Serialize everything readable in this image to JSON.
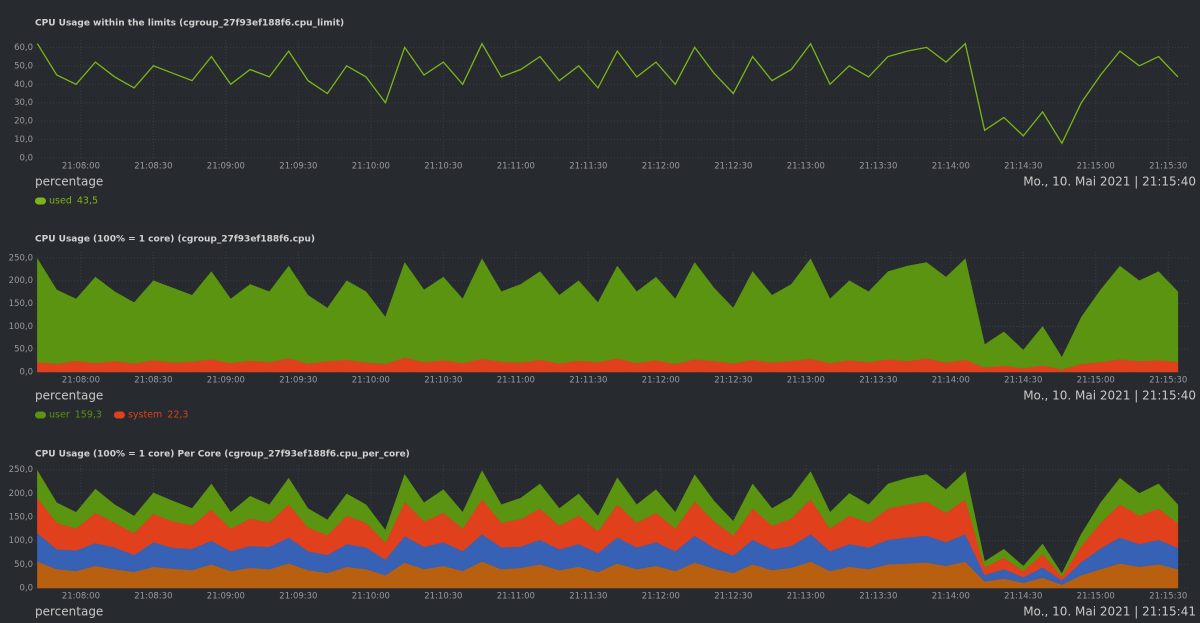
{
  "chart_data": [
    {
      "type": "line",
      "title": "CPU Usage within the limits (cgroup_27f93ef188f6.cpu_limit)",
      "unit": "percentage",
      "date": "Mo., 10. Mai 2021 | 21:15:40",
      "x": [
        76062,
        76070,
        76078,
        76086,
        76094,
        76102,
        76110,
        76118,
        76126,
        76134,
        76142,
        76150,
        76158,
        76166,
        76174,
        76182,
        76190,
        76198,
        76206,
        76214,
        76222,
        76230,
        76238,
        76246,
        76254,
        76262,
        76270,
        76278,
        76286,
        76294,
        76302,
        76310,
        76318,
        76326,
        76334,
        76342,
        76350,
        76358,
        76366,
        76374,
        76382,
        76390,
        76398,
        76406,
        76414,
        76422,
        76430,
        76438,
        76446,
        76454,
        76462,
        76470,
        76478,
        76486,
        76494,
        76502,
        76510,
        76518,
        76526,
        76534
      ],
      "xlim": [
        76061,
        76539
      ],
      "xticks": [
        {
          "value": 76080,
          "label": "21:08:00"
        },
        {
          "value": 76110,
          "label": "21:08:30"
        },
        {
          "value": 76140,
          "label": "21:09:00"
        },
        {
          "value": 76170,
          "label": "21:09:30"
        },
        {
          "value": 76200,
          "label": "21:10:00"
        },
        {
          "value": 76230,
          "label": "21:10:30"
        },
        {
          "value": 76260,
          "label": "21:11:00"
        },
        {
          "value": 76290,
          "label": "21:11:30"
        },
        {
          "value": 76320,
          "label": "21:12:00"
        },
        {
          "value": 76350,
          "label": "21:12:30"
        },
        {
          "value": 76380,
          "label": "21:13:00"
        },
        {
          "value": 76410,
          "label": "21:13:30"
        },
        {
          "value": 76440,
          "label": "21:14:00"
        },
        {
          "value": 76470,
          "label": "21:14:30"
        },
        {
          "value": 76500,
          "label": "21:15:00"
        },
        {
          "value": 76530,
          "label": "21:15:30"
        }
      ],
      "ylim": [
        0,
        64
      ],
      "yticks": [
        {
          "value": 0,
          "label": "0,0"
        },
        {
          "value": 10,
          "label": "10,0"
        },
        {
          "value": 20,
          "label": "20,0"
        },
        {
          "value": 30,
          "label": "30,0"
        },
        {
          "value": 40,
          "label": "40,0"
        },
        {
          "value": 50,
          "label": "50,0"
        },
        {
          "value": 60,
          "label": "60,0"
        }
      ],
      "grid": true,
      "series": [
        {
          "name": "used",
          "current": "43,5",
          "color": "#7cb518",
          "values": [
            62,
            45,
            40,
            52,
            44,
            38,
            50,
            46,
            42,
            55,
            40,
            48,
            44,
            58,
            42,
            35,
            50,
            44,
            30,
            60,
            45,
            52,
            40,
            62,
            44,
            48,
            55,
            42,
            50,
            38,
            58,
            44,
            52,
            40,
            60,
            46,
            35,
            55,
            42,
            48,
            62,
            40,
            50,
            44,
            55,
            58,
            60,
            52,
            62,
            15,
            22,
            12,
            25,
            8,
            30,
            45,
            58,
            50,
            55,
            44
          ]
        }
      ]
    },
    {
      "type": "area",
      "stacked": true,
      "title": "CPU Usage (100% = 1 core) (cgroup_27f93ef188f6.cpu)",
      "unit": "percentage",
      "date": "Mo., 10. Mai 2021 | 21:15:40",
      "x": [
        76062,
        76070,
        76078,
        76086,
        76094,
        76102,
        76110,
        76118,
        76126,
        76134,
        76142,
        76150,
        76158,
        76166,
        76174,
        76182,
        76190,
        76198,
        76206,
        76214,
        76222,
        76230,
        76238,
        76246,
        76254,
        76262,
        76270,
        76278,
        76286,
        76294,
        76302,
        76310,
        76318,
        76326,
        76334,
        76342,
        76350,
        76358,
        76366,
        76374,
        76382,
        76390,
        76398,
        76406,
        76414,
        76422,
        76430,
        76438,
        76446,
        76454,
        76462,
        76470,
        76478,
        76486,
        76494,
        76502,
        76510,
        76518,
        76526,
        76534
      ],
      "xlim": [
        76061,
        76539
      ],
      "xticks": [
        {
          "value": 76080,
          "label": "21:08:00"
        },
        {
          "value": 76110,
          "label": "21:08:30"
        },
        {
          "value": 76140,
          "label": "21:09:00"
        },
        {
          "value": 76170,
          "label": "21:09:30"
        },
        {
          "value": 76200,
          "label": "21:10:00"
        },
        {
          "value": 76230,
          "label": "21:10:30"
        },
        {
          "value": 76260,
          "label": "21:11:00"
        },
        {
          "value": 76290,
          "label": "21:11:30"
        },
        {
          "value": 76320,
          "label": "21:12:00"
        },
        {
          "value": 76350,
          "label": "21:12:30"
        },
        {
          "value": 76380,
          "label": "21:13:00"
        },
        {
          "value": 76410,
          "label": "21:13:30"
        },
        {
          "value": 76440,
          "label": "21:14:00"
        },
        {
          "value": 76470,
          "label": "21:14:30"
        },
        {
          "value": 76500,
          "label": "21:15:00"
        },
        {
          "value": 76530,
          "label": "21:15:30"
        }
      ],
      "ylim": [
        0,
        263
      ],
      "yticks": [
        {
          "value": 0,
          "label": "0,0"
        },
        {
          "value": 50,
          "label": "50,0"
        },
        {
          "value": 100,
          "label": "100,0"
        },
        {
          "value": 150,
          "label": "150,0"
        },
        {
          "value": 200,
          "label": "200,0"
        },
        {
          "value": 250,
          "label": "250,0"
        }
      ],
      "grid": true,
      "series": [
        {
          "name": "user",
          "current": "159,3",
          "color": "#5a9410",
          "values": [
            226,
            162,
            135,
            188,
            152,
            133,
            174,
            163,
            145,
            192,
            140,
            167,
            154,
            202,
            149,
            116,
            173,
            155,
            102,
            208,
            158,
            182,
            140,
            219,
            153,
            171,
            193,
            149,
            175,
            130,
            202,
            156,
            182,
            142,
            212,
            160,
            121,
            193,
            147,
            167,
            219,
            140,
            174,
            154,
            192,
            208,
            210,
            187,
            221,
            50,
            74,
            40,
            85,
            26,
            102,
            158,
            204,
            176,
            194,
            154
          ]
        },
        {
          "name": "system",
          "current": "22,3",
          "color": "#e0401c",
          "values": [
            22,
            18,
            25,
            20,
            24,
            19,
            26,
            21,
            23,
            28,
            20,
            25,
            22,
            30,
            19,
            24,
            27,
            21,
            18,
            32,
            22,
            26,
            20,
            29,
            23,
            21,
            27,
            19,
            25,
            22,
            30,
            20,
            26,
            18,
            28,
            24,
            19,
            27,
            21,
            25,
            29,
            20,
            26,
            22,
            28,
            24,
            30,
            21,
            27,
            10,
            14,
            8,
            15,
            6,
            18,
            22,
            28,
            24,
            26,
            22
          ]
        }
      ]
    },
    {
      "type": "area",
      "stacked": true,
      "title": "CPU Usage (100% = 1 core) Per Core (cgroup_27f93ef188f6.cpu_per_core)",
      "unit": "percentage",
      "date": "Mo., 10. Mai 2021 | 21:15:41",
      "x": [
        76062,
        76070,
        76078,
        76086,
        76094,
        76102,
        76110,
        76118,
        76126,
        76134,
        76142,
        76150,
        76158,
        76166,
        76174,
        76182,
        76190,
        76198,
        76206,
        76214,
        76222,
        76230,
        76238,
        76246,
        76254,
        76262,
        76270,
        76278,
        76286,
        76294,
        76302,
        76310,
        76318,
        76326,
        76334,
        76342,
        76350,
        76358,
        76366,
        76374,
        76382,
        76390,
        76398,
        76406,
        76414,
        76422,
        76430,
        76438,
        76446,
        76454,
        76462,
        76470,
        76478,
        76486,
        76494,
        76502,
        76510,
        76518,
        76526,
        76534
      ],
      "xlim": [
        76061,
        76539
      ],
      "xticks": [
        {
          "value": 76080,
          "label": "21:08:00"
        },
        {
          "value": 76110,
          "label": "21:08:30"
        },
        {
          "value": 76140,
          "label": "21:09:00"
        },
        {
          "value": 76170,
          "label": "21:09:30"
        },
        {
          "value": 76200,
          "label": "21:10:00"
        },
        {
          "value": 76230,
          "label": "21:10:30"
        },
        {
          "value": 76260,
          "label": "21:11:00"
        },
        {
          "value": 76290,
          "label": "21:11:30"
        },
        {
          "value": 76320,
          "label": "21:12:00"
        },
        {
          "value": 76350,
          "label": "21:12:30"
        },
        {
          "value": 76380,
          "label": "21:13:00"
        },
        {
          "value": 76410,
          "label": "21:13:30"
        },
        {
          "value": 76440,
          "label": "21:14:00"
        },
        {
          "value": 76470,
          "label": "21:14:30"
        },
        {
          "value": 76500,
          "label": "21:15:00"
        },
        {
          "value": 76530,
          "label": "21:15:30"
        }
      ],
      "ylim": [
        0,
        260
      ],
      "yticks": [
        {
          "value": 0,
          "label": "0,0"
        },
        {
          "value": 50,
          "label": "50,0"
        },
        {
          "value": 100,
          "label": "100,0"
        },
        {
          "value": 150,
          "label": "150,0"
        },
        {
          "value": 200,
          "label": "200,0"
        },
        {
          "value": 250,
          "label": "250,0"
        }
      ],
      "grid": true,
      "series": [
        {
          "color": "#5a9410",
          "values": [
            58,
            42,
            34,
            50,
            38,
            36,
            44,
            43,
            35,
            54,
            34,
            47,
            37,
            55,
            40,
            32,
            46,
            38,
            26,
            58,
            39,
            49,
            34,
            60,
            38,
            44,
            52,
            36,
            46,
            32,
            56,
            38,
            49,
            34,
            56,
            43,
            30,
            52,
            36,
            45,
            58,
            34,
            47,
            38,
            52,
            55,
            57,
            49,
            58,
            12,
            18,
            10,
            21,
            6,
            25,
            42,
            55,
            47,
            52,
            39
          ]
        },
        {
          "color": "#e0401c",
          "values": [
            74,
            56,
            46,
            64,
            52,
            46,
            60,
            56,
            50,
            66,
            48,
            58,
            52,
            70,
            50,
            42,
            60,
            52,
            36,
            72,
            54,
            62,
            48,
            74,
            52,
            58,
            66,
            50,
            60,
            46,
            70,
            52,
            62,
            48,
            72,
            56,
            42,
            66,
            50,
            58,
            74,
            48,
            60,
            52,
            66,
            70,
            72,
            62,
            74,
            16,
            24,
            13,
            28,
            8,
            34,
            54,
            70,
            60,
            66,
            52
          ]
        },
        {
          "color": "#3661b4",
          "values": [
            60,
            42,
            44,
            48,
            46,
            36,
            52,
            44,
            45,
            50,
            42,
            46,
            47,
            55,
            40,
            38,
            48,
            46,
            33,
            56,
            47,
            50,
            42,
            58,
            46,
            45,
            52,
            44,
            48,
            40,
            55,
            46,
            50,
            42,
            57,
            44,
            37,
            52,
            44,
            46,
            58,
            42,
            48,
            46,
            52,
            55,
            57,
            50,
            58,
            14,
            20,
            12,
            22,
            9,
            28,
            44,
            55,
            48,
            52,
            45
          ]
        },
        {
          "color": "#b8600f",
          "values": [
            56,
            40,
            36,
            47,
            40,
            34,
            45,
            41,
            38,
            50,
            36,
            43,
            40,
            52,
            38,
            32,
            45,
            40,
            27,
            54,
            40,
            47,
            36,
            56,
            40,
            43,
            50,
            38,
            45,
            34,
            52,
            40,
            47,
            36,
            54,
            41,
            32,
            50,
            38,
            43,
            56,
            36,
            45,
            40,
            50,
            52,
            54,
            47,
            56,
            14,
            20,
            11,
            22,
            7,
            27,
            40,
            52,
            45,
            50,
            40
          ]
        }
      ]
    }
  ]
}
